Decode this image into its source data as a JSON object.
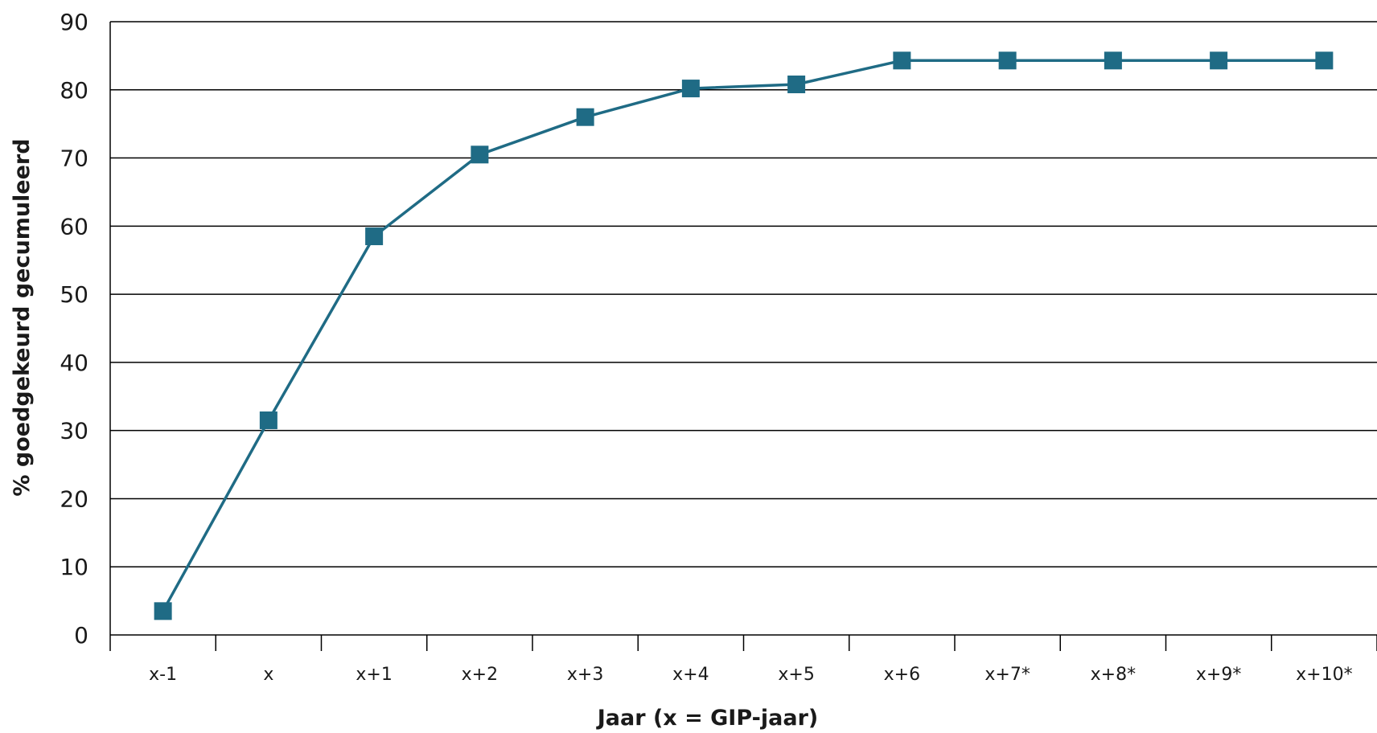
{
  "chart_data": {
    "type": "line",
    "xlabel": "Jaar (x = GIP-jaar)",
    "ylabel": "% goedgekeurd gecumuleerd",
    "ylim": [
      0,
      90
    ],
    "yticks": [
      0,
      10,
      20,
      30,
      40,
      50,
      60,
      70,
      80,
      90
    ],
    "grid": "horizontal",
    "categories": [
      "x-1",
      "x",
      "x+1",
      "x+2",
      "x+3",
      "x+4",
      "x+5",
      "x+6",
      "x+7*",
      "x+8*",
      "x+9*",
      "x+10*"
    ],
    "series": [
      {
        "values": [
          3.5,
          31.5,
          58.5,
          70.5,
          76.0,
          80.2,
          80.8,
          84.3,
          84.3,
          84.3,
          84.3,
          84.3
        ],
        "color": "#1f6b85",
        "marker": "square"
      }
    ]
  }
}
